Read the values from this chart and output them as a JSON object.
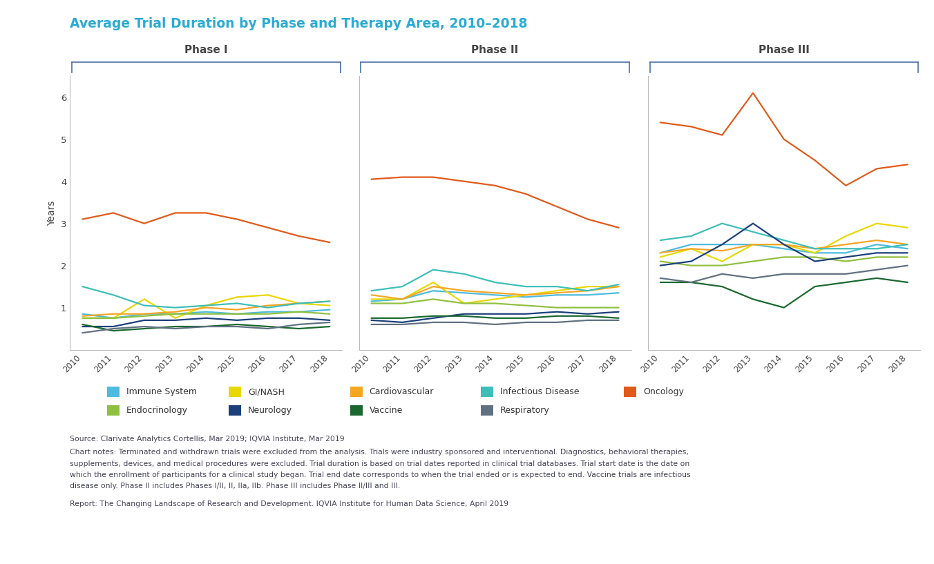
{
  "title": "Average Trial Duration by Phase and Therapy Area, 2010–2018",
  "title_color": "#29ABD4",
  "ylabel": "Years",
  "years": [
    2010,
    2011,
    2012,
    2013,
    2014,
    2015,
    2016,
    2017,
    2018
  ],
  "phases": [
    "Phase I",
    "Phase II",
    "Phase III"
  ],
  "therapy_areas": [
    "Immune System",
    "GI/NASH",
    "Cardiovascular",
    "Infectious Disease",
    "Oncology",
    "Endocrinology",
    "Neurology",
    "Vaccine",
    "Respiratory"
  ],
  "colors": {
    "Immune System": "#4DBBDF",
    "GI/NASH": "#E8D800",
    "Cardiovascular": "#F5A623",
    "Infectious Disease": "#3DBFB8",
    "Oncology": "#E05A1A",
    "Endocrinology": "#90C040",
    "Neurology": "#1A3F7A",
    "Vaccine": "#1A6830",
    "Respiratory": "#607080"
  },
  "phase1": {
    "Oncology": [
      3.1,
      3.25,
      3.0,
      3.25,
      3.25,
      3.1,
      2.9,
      2.7,
      2.55
    ],
    "Immune System": [
      0.85,
      0.75,
      0.85,
      0.85,
      0.9,
      0.85,
      0.9,
      0.9,
      0.95
    ],
    "GI/NASH": [
      0.75,
      0.75,
      1.2,
      0.75,
      1.05,
      1.25,
      1.3,
      1.1,
      1.05
    ],
    "Cardiovascular": [
      0.8,
      0.85,
      0.85,
      0.9,
      1.0,
      0.95,
      1.05,
      1.1,
      1.15
    ],
    "Infectious Disease": [
      1.5,
      1.3,
      1.05,
      1.0,
      1.05,
      1.1,
      1.0,
      1.1,
      1.15
    ],
    "Endocrinology": [
      0.75,
      0.75,
      0.8,
      0.85,
      0.85,
      0.85,
      0.85,
      0.9,
      0.85
    ],
    "Neurology": [
      0.55,
      0.55,
      0.7,
      0.7,
      0.75,
      0.7,
      0.75,
      0.75,
      0.7
    ],
    "Vaccine": [
      0.6,
      0.45,
      0.5,
      0.55,
      0.55,
      0.6,
      0.55,
      0.5,
      0.55
    ],
    "Respiratory": [
      0.4,
      0.5,
      0.55,
      0.5,
      0.55,
      0.55,
      0.5,
      0.6,
      0.65
    ]
  },
  "phase2": {
    "Oncology": [
      4.05,
      4.1,
      4.1,
      4.0,
      3.9,
      3.7,
      3.4,
      3.1,
      2.9
    ],
    "Immune System": [
      1.15,
      1.2,
      1.4,
      1.35,
      1.3,
      1.25,
      1.3,
      1.3,
      1.35
    ],
    "GI/NASH": [
      1.2,
      1.2,
      1.6,
      1.1,
      1.2,
      1.3,
      1.4,
      1.5,
      1.5
    ],
    "Cardiovascular": [
      1.3,
      1.2,
      1.5,
      1.4,
      1.35,
      1.3,
      1.35,
      1.4,
      1.5
    ],
    "Infectious Disease": [
      1.4,
      1.5,
      1.9,
      1.8,
      1.6,
      1.5,
      1.5,
      1.4,
      1.55
    ],
    "Endocrinology": [
      1.1,
      1.1,
      1.2,
      1.1,
      1.1,
      1.05,
      1.0,
      1.0,
      1.0
    ],
    "Neurology": [
      0.7,
      0.65,
      0.75,
      0.85,
      0.85,
      0.85,
      0.9,
      0.85,
      0.9
    ],
    "Vaccine": [
      0.75,
      0.75,
      0.8,
      0.8,
      0.75,
      0.75,
      0.8,
      0.8,
      0.75
    ],
    "Respiratory": [
      0.6,
      0.6,
      0.65,
      0.65,
      0.6,
      0.65,
      0.65,
      0.7,
      0.7
    ]
  },
  "phase3": {
    "Oncology": [
      5.4,
      5.3,
      5.1,
      6.1,
      5.0,
      4.5,
      3.9,
      4.3,
      4.4
    ],
    "Immune System": [
      2.3,
      2.5,
      2.5,
      2.5,
      2.4,
      2.3,
      2.3,
      2.5,
      2.4
    ],
    "GI/NASH": [
      2.2,
      2.4,
      2.1,
      2.5,
      2.5,
      2.3,
      2.7,
      3.0,
      2.9
    ],
    "Cardiovascular": [
      2.3,
      2.4,
      2.35,
      2.5,
      2.5,
      2.4,
      2.5,
      2.6,
      2.5
    ],
    "Infectious Disease": [
      2.6,
      2.7,
      3.0,
      2.8,
      2.6,
      2.4,
      2.4,
      2.4,
      2.5
    ],
    "Endocrinology": [
      2.1,
      2.0,
      2.0,
      2.1,
      2.2,
      2.2,
      2.1,
      2.2,
      2.2
    ],
    "Neurology": [
      2.0,
      2.1,
      2.5,
      3.0,
      2.5,
      2.1,
      2.2,
      2.3,
      2.3
    ],
    "Vaccine": [
      1.6,
      1.6,
      1.5,
      1.2,
      1.0,
      1.5,
      1.6,
      1.7,
      1.6
    ],
    "Respiratory": [
      1.7,
      1.6,
      1.8,
      1.7,
      1.8,
      1.8,
      1.8,
      1.9,
      2.0
    ]
  },
  "ylim": [
    0,
    6.5
  ],
  "yticks": [
    0,
    1,
    2,
    3,
    4,
    5,
    6
  ],
  "source_text": "Source: Clarivate Analytics Cortellis, Mar 2019; IQVIA Institute, Mar 2019",
  "notes_line1": "Chart notes: Terminated and withdrawn trials were excluded from the analysis. Trials were industry sponsored and interventional. Diagnostics, behavioral therapies,",
  "notes_line2": "supplements, devices, and medical procedures were excluded. Trial duration is based on trial dates reported in clinical trial databases. Trial start date is the date on",
  "notes_line3": "which the enrollment of participants for a clinical study began. Trial end date corresponds to when the trial ended or is expected to end. Vaccine trials are infectious",
  "notes_line4": "disease only. Phase II includes Phases I/II, II, IIa, IIb. Phase III includes Phase II/III and III.",
  "report_text": "Report: The Changing Landscape of Research and Development. IQVIA Institute for Human Data Science, April 2019",
  "background_color": "#FFFFFF",
  "bracket_color": "#4A6FA5",
  "text_color": "#4A5568",
  "legend_row1": [
    "Immune System",
    "GI/NASH",
    "Cardiovascular",
    "Infectious Disease",
    "Oncology"
  ],
  "legend_row2": [
    "Endocrinology",
    "Neurology",
    "Vaccine",
    "Respiratory"
  ]
}
